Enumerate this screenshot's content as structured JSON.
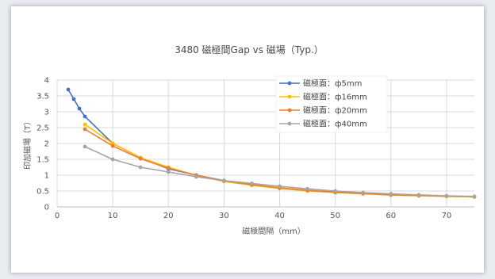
{
  "chart_data": {
    "type": "line",
    "title": "3480 磁極間Gap vs 磁場（Typ.）",
    "xlabel": "磁極間隔（mm）",
    "ylabel": "印加磁場（T）",
    "xlim": [
      0,
      75
    ],
    "ylim": [
      0,
      4
    ],
    "xticks": [
      0,
      10,
      20,
      30,
      40,
      50,
      60,
      70
    ],
    "yticks": [
      0,
      0.5,
      1,
      1.5,
      2,
      2.5,
      3,
      3.5,
      4
    ],
    "grid": true,
    "legend_position": "top-right",
    "series": [
      {
        "name": "磁極面：ф5mm",
        "color": "#4472c4",
        "x": [
          2,
          3,
          4,
          5,
          10,
          15,
          20,
          25,
          30,
          35,
          40,
          45,
          50,
          55,
          60,
          65,
          70,
          75
        ],
        "y": [
          3.7,
          3.4,
          3.1,
          2.85,
          2.0,
          1.55,
          1.2,
          1.0,
          0.83,
          0.7,
          0.6,
          0.52,
          0.46,
          0.42,
          0.39,
          0.36,
          0.34,
          0.32
        ]
      },
      {
        "name": "磁極面：ф16mm",
        "color": "#ffc000",
        "x": [
          5,
          10,
          15,
          20,
          25,
          30,
          35,
          40,
          45,
          50,
          55,
          60,
          65,
          70,
          75
        ],
        "y": [
          2.6,
          2.0,
          1.55,
          1.25,
          0.99,
          0.8,
          0.68,
          0.58,
          0.5,
          0.45,
          0.41,
          0.37,
          0.35,
          0.33,
          0.31
        ]
      },
      {
        "name": "磁極面：ф20mm",
        "color": "#ed7d31",
        "x": [
          5,
          10,
          15,
          20,
          25,
          30,
          35,
          40,
          45,
          50,
          55,
          60,
          65,
          70,
          75
        ],
        "y": [
          2.45,
          1.92,
          1.52,
          1.22,
          1.0,
          0.82,
          0.7,
          0.6,
          0.52,
          0.46,
          0.42,
          0.38,
          0.36,
          0.34,
          0.32
        ]
      },
      {
        "name": "磁極面：ф40mm",
        "color": "#a5a5a5",
        "x": [
          5,
          10,
          15,
          20,
          25,
          30,
          35,
          40,
          45,
          50,
          55,
          60,
          65,
          70,
          75
        ],
        "y": [
          1.9,
          1.5,
          1.25,
          1.1,
          0.95,
          0.83,
          0.74,
          0.65,
          0.57,
          0.5,
          0.45,
          0.41,
          0.38,
          0.35,
          0.33
        ]
      }
    ]
  }
}
